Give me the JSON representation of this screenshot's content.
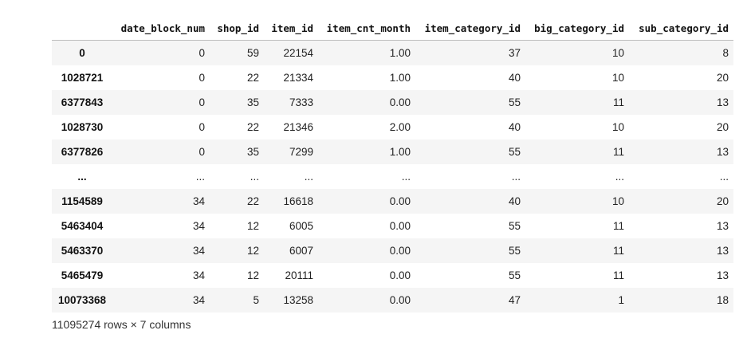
{
  "table": {
    "index_header": "",
    "columns": [
      "date_block_num",
      "shop_id",
      "item_id",
      "item_cnt_month",
      "item_category_id",
      "big_category_id",
      "sub_category_id"
    ],
    "rows": [
      {
        "index": "0",
        "cells": [
          "0",
          "59",
          "22154",
          "1.00",
          "37",
          "10",
          "8"
        ]
      },
      {
        "index": "1028721",
        "cells": [
          "0",
          "22",
          "21334",
          "1.00",
          "40",
          "10",
          "20"
        ]
      },
      {
        "index": "6377843",
        "cells": [
          "0",
          "35",
          "7333",
          "0.00",
          "55",
          "11",
          "13"
        ]
      },
      {
        "index": "1028730",
        "cells": [
          "0",
          "22",
          "21346",
          "2.00",
          "40",
          "10",
          "20"
        ]
      },
      {
        "index": "6377826",
        "cells": [
          "0",
          "35",
          "7299",
          "1.00",
          "55",
          "11",
          "13"
        ]
      },
      {
        "index": "...",
        "cells": [
          "...",
          "...",
          "...",
          "...",
          "...",
          "...",
          "..."
        ]
      },
      {
        "index": "1154589",
        "cells": [
          "34",
          "22",
          "16618",
          "0.00",
          "40",
          "10",
          "20"
        ]
      },
      {
        "index": "5463404",
        "cells": [
          "34",
          "12",
          "6005",
          "0.00",
          "55",
          "11",
          "13"
        ]
      },
      {
        "index": "5463370",
        "cells": [
          "34",
          "12",
          "6007",
          "0.00",
          "55",
          "11",
          "13"
        ]
      },
      {
        "index": "5465479",
        "cells": [
          "34",
          "12",
          "20111",
          "0.00",
          "55",
          "11",
          "13"
        ]
      },
      {
        "index": "10073368",
        "cells": [
          "34",
          "5",
          "13258",
          "0.00",
          "47",
          "1",
          "18"
        ]
      }
    ]
  },
  "footer": {
    "summary": "11095274 rows × 7 columns"
  }
}
